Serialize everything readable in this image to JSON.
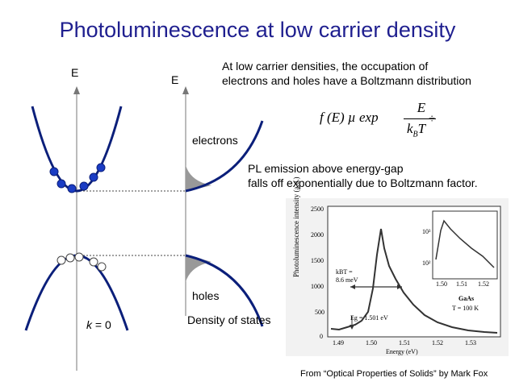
{
  "title": "Photoluminescence at low carrier density",
  "band_diagram": {
    "axis_label_left": "E",
    "axis_label_right": "E",
    "k_label_italic": "k",
    "k_label_rest": " = 0",
    "electrons_label": "electrons",
    "holes_label": "holes",
    "dos_label": "Density of states"
  },
  "text": {
    "boltzmann_line1": "At low carrier densities, the occupation of",
    "boltzmann_line2": "electrons and holes have a Boltzmann distribution",
    "pl_line1": "PL emission above energy-gap",
    "pl_line2": "falls off exponentially due to Boltzmann factor."
  },
  "formula": {
    "lhs": "f (E) µ exp",
    "numerator": "E",
    "denominator": "k",
    "denominator_sub": "B",
    "denominator_T": "T",
    "trail": "÷"
  },
  "inset_chart": {
    "ylabel": "Photoluminescence intensity (a.u.)",
    "xlabel": "Energy (eV)",
    "yticks": [
      "0",
      "500",
      "1000",
      "1500",
      "2000",
      "2500"
    ],
    "xticks": [
      "1.49",
      "1.50",
      "1.51",
      "1.52",
      "1.53"
    ],
    "kbt_line1": "kBT =",
    "kbt_line2": "8.6 meV",
    "eg_label": "Eg = 1.501 eV",
    "sample_line1": "GaAs",
    "sample_line2": "T = 100 K",
    "log_yticks": [
      "10³",
      "10²"
    ],
    "log_xticks": [
      "1.50",
      "1.51",
      "1.52"
    ]
  },
  "credit": "From “Optical Properties of Solids” by Mark Fox",
  "colors": {
    "title": "#1f1f8f",
    "band": "#0b1f7a",
    "dots": "#1a3cc4"
  }
}
